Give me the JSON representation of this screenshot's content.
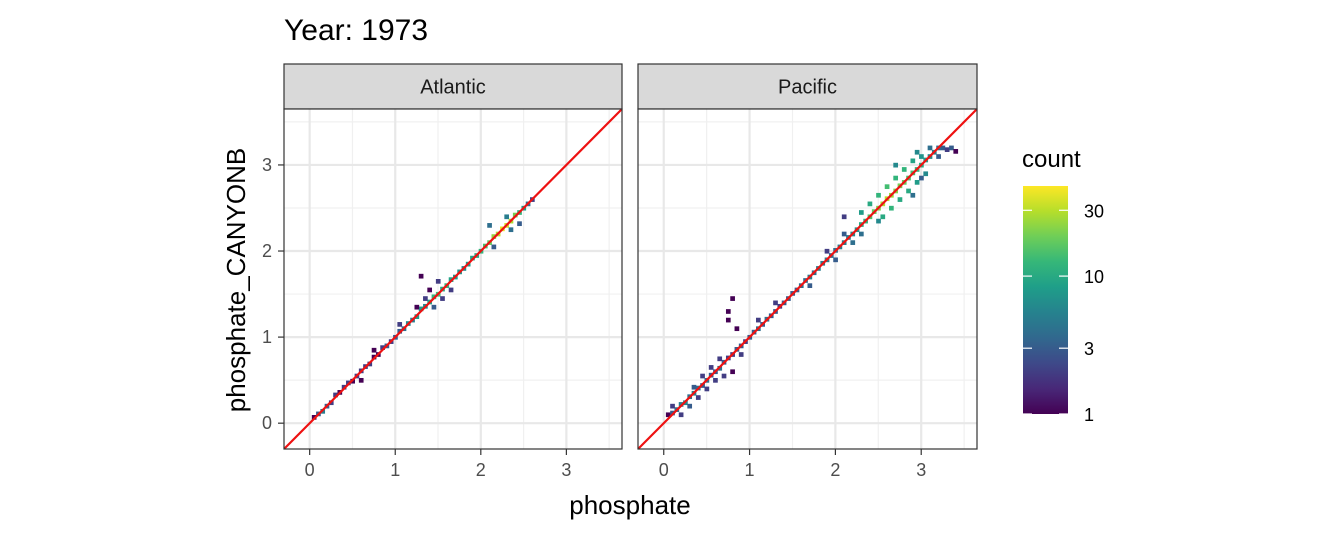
{
  "chart_data": {
    "type": "heatmap",
    "title": "Year: 1973",
    "xlabel": "phosphate",
    "ylabel": "phosphate_CANYONB",
    "xlim": [
      -0.3,
      3.65
    ],
    "ylim": [
      -0.3,
      3.65
    ],
    "x_ticks": [
      0,
      1,
      2,
      3
    ],
    "y_ticks": [
      0,
      1,
      2,
      3
    ],
    "grid": true,
    "reference_line": {
      "slope": 1,
      "intercept": 0,
      "color": "#ee1111"
    },
    "facets": [
      {
        "label": "Atlantic",
        "x_range": [
          0.0,
          2.6
        ],
        "bins": [
          [
            0.05,
            0.07,
            1
          ],
          [
            0.1,
            0.11,
            3
          ],
          [
            0.15,
            0.14,
            5
          ],
          [
            0.2,
            0.2,
            3
          ],
          [
            0.25,
            0.24,
            2
          ],
          [
            0.3,
            0.33,
            2
          ],
          [
            0.35,
            0.36,
            1
          ],
          [
            0.4,
            0.42,
            2
          ],
          [
            0.45,
            0.47,
            2
          ],
          [
            0.5,
            0.49,
            1
          ],
          [
            0.55,
            0.55,
            2
          ],
          [
            0.6,
            0.61,
            2
          ],
          [
            0.65,
            0.66,
            2
          ],
          [
            0.7,
            0.69,
            2
          ],
          [
            0.75,
            0.77,
            1
          ],
          [
            0.8,
            0.8,
            1
          ],
          [
            0.85,
            0.88,
            2
          ],
          [
            0.9,
            0.9,
            3
          ],
          [
            0.95,
            0.95,
            2
          ],
          [
            1.0,
            1.0,
            3
          ],
          [
            1.05,
            1.07,
            3
          ],
          [
            1.1,
            1.1,
            4
          ],
          [
            1.15,
            1.16,
            6
          ],
          [
            1.2,
            1.2,
            5
          ],
          [
            1.25,
            1.24,
            8
          ],
          [
            1.3,
            1.33,
            8
          ],
          [
            1.35,
            1.36,
            6
          ],
          [
            1.4,
            1.41,
            9
          ],
          [
            1.45,
            1.47,
            12
          ],
          [
            1.5,
            1.5,
            14
          ],
          [
            1.55,
            1.56,
            10
          ],
          [
            1.6,
            1.6,
            12
          ],
          [
            1.65,
            1.67,
            9
          ],
          [
            1.7,
            1.7,
            8
          ],
          [
            1.75,
            1.76,
            7
          ],
          [
            1.8,
            1.8,
            6
          ],
          [
            1.85,
            1.85,
            8
          ],
          [
            1.9,
            1.92,
            9
          ],
          [
            1.95,
            1.95,
            10
          ],
          [
            2.0,
            2.0,
            12
          ],
          [
            2.05,
            2.06,
            15
          ],
          [
            2.1,
            2.1,
            18
          ],
          [
            2.15,
            2.17,
            24
          ],
          [
            2.2,
            2.2,
            30
          ],
          [
            2.25,
            2.26,
            40
          ],
          [
            2.3,
            2.3,
            35
          ],
          [
            2.35,
            2.35,
            28
          ],
          [
            2.4,
            2.42,
            20
          ],
          [
            2.45,
            2.45,
            12
          ],
          [
            2.5,
            2.5,
            8
          ],
          [
            2.55,
            2.55,
            4
          ],
          [
            2.6,
            2.6,
            2
          ],
          [
            1.3,
            1.71,
            1
          ],
          [
            1.25,
            1.35,
            1
          ],
          [
            1.35,
            1.45,
            2
          ],
          [
            1.4,
            1.55,
            1
          ],
          [
            0.6,
            0.5,
            1
          ],
          [
            1.5,
            1.65,
            2
          ],
          [
            1.45,
            1.35,
            3
          ],
          [
            1.55,
            1.45,
            2
          ],
          [
            0.75,
            0.85,
            1
          ],
          [
            1.65,
            1.55,
            2
          ],
          [
            1.05,
            1.15,
            2
          ],
          [
            2.1,
            2.3,
            4
          ],
          [
            2.15,
            2.05,
            3
          ],
          [
            2.3,
            2.4,
            5
          ],
          [
            2.35,
            2.25,
            4
          ],
          [
            2.45,
            2.32,
            3
          ]
        ]
      },
      {
        "label": "Pacific",
        "x_range": [
          0.05,
          3.45
        ],
        "bins": [
          [
            0.05,
            0.1,
            1
          ],
          [
            0.1,
            0.12,
            3
          ],
          [
            0.15,
            0.16,
            4
          ],
          [
            0.2,
            0.22,
            5
          ],
          [
            0.25,
            0.24,
            6
          ],
          [
            0.3,
            0.31,
            4
          ],
          [
            0.35,
            0.35,
            5
          ],
          [
            0.4,
            0.41,
            4
          ],
          [
            0.45,
            0.44,
            3
          ],
          [
            0.5,
            0.5,
            4
          ],
          [
            0.55,
            0.56,
            3
          ],
          [
            0.6,
            0.6,
            3
          ],
          [
            0.65,
            0.64,
            4
          ],
          [
            0.7,
            0.71,
            3
          ],
          [
            0.75,
            0.76,
            2
          ],
          [
            0.8,
            0.8,
            2
          ],
          [
            0.85,
            0.86,
            3
          ],
          [
            0.9,
            0.9,
            3
          ],
          [
            0.95,
            0.95,
            2
          ],
          [
            1.0,
            1.0,
            3
          ],
          [
            1.05,
            1.06,
            3
          ],
          [
            1.1,
            1.1,
            4
          ],
          [
            1.15,
            1.15,
            3
          ],
          [
            1.2,
            1.21,
            4
          ],
          [
            1.25,
            1.25,
            3
          ],
          [
            1.3,
            1.3,
            3
          ],
          [
            1.35,
            1.36,
            2
          ],
          [
            1.4,
            1.4,
            3
          ],
          [
            1.45,
            1.45,
            3
          ],
          [
            1.5,
            1.51,
            3
          ],
          [
            1.55,
            1.55,
            3
          ],
          [
            1.6,
            1.6,
            4
          ],
          [
            1.65,
            1.66,
            4
          ],
          [
            1.7,
            1.7,
            5
          ],
          [
            1.75,
            1.75,
            4
          ],
          [
            1.8,
            1.8,
            5
          ],
          [
            1.85,
            1.86,
            5
          ],
          [
            1.9,
            1.9,
            5
          ],
          [
            1.95,
            1.95,
            4
          ],
          [
            2.0,
            2.01,
            4
          ],
          [
            2.05,
            2.05,
            5
          ],
          [
            2.1,
            2.1,
            5
          ],
          [
            2.15,
            2.16,
            5
          ],
          [
            2.2,
            2.2,
            6
          ],
          [
            2.25,
            2.25,
            7
          ],
          [
            2.3,
            2.31,
            10
          ],
          [
            2.35,
            2.35,
            12
          ],
          [
            2.4,
            2.4,
            15
          ],
          [
            2.45,
            2.46,
            18
          ],
          [
            2.5,
            2.5,
            22
          ],
          [
            2.55,
            2.55,
            28
          ],
          [
            2.6,
            2.61,
            30
          ],
          [
            2.65,
            2.65,
            25
          ],
          [
            2.7,
            2.7,
            22
          ],
          [
            2.75,
            2.76,
            20
          ],
          [
            2.8,
            2.8,
            18
          ],
          [
            2.85,
            2.85,
            15
          ],
          [
            2.9,
            2.91,
            14
          ],
          [
            2.95,
            2.95,
            12
          ],
          [
            3.0,
            3.0,
            10
          ],
          [
            3.05,
            3.06,
            8
          ],
          [
            3.1,
            3.1,
            6
          ],
          [
            3.15,
            3.15,
            5
          ],
          [
            3.2,
            3.2,
            4
          ],
          [
            3.25,
            3.2,
            3
          ],
          [
            3.3,
            3.18,
            2
          ],
          [
            3.35,
            3.2,
            3
          ],
          [
            3.4,
            3.16,
            1
          ],
          [
            0.1,
            0.2,
            2
          ],
          [
            0.2,
            0.1,
            2
          ],
          [
            0.3,
            0.2,
            3
          ],
          [
            0.35,
            0.42,
            3
          ],
          [
            0.4,
            0.3,
            2
          ],
          [
            0.45,
            0.55,
            2
          ],
          [
            0.5,
            0.4,
            2
          ],
          [
            0.55,
            0.65,
            2
          ],
          [
            0.6,
            0.5,
            2
          ],
          [
            0.65,
            0.75,
            2
          ],
          [
            0.7,
            0.55,
            2
          ],
          [
            0.8,
            0.6,
            1
          ],
          [
            0.8,
            1.45,
            1
          ],
          [
            0.75,
            1.3,
            1
          ],
          [
            0.85,
            1.1,
            1
          ],
          [
            0.75,
            1.2,
            1
          ],
          [
            0.9,
            0.8,
            2
          ],
          [
            1.1,
            1.2,
            2
          ],
          [
            1.3,
            1.4,
            2
          ],
          [
            1.7,
            1.6,
            3
          ],
          [
            1.9,
            2.0,
            2
          ],
          [
            2.0,
            1.9,
            3
          ],
          [
            2.1,
            2.2,
            3
          ],
          [
            2.2,
            2.1,
            4
          ],
          [
            2.3,
            2.45,
            8
          ],
          [
            2.4,
            2.55,
            10
          ],
          [
            2.5,
            2.65,
            12
          ],
          [
            2.55,
            2.4,
            10
          ],
          [
            2.6,
            2.75,
            14
          ],
          [
            2.65,
            2.5,
            12
          ],
          [
            2.7,
            2.85,
            12
          ],
          [
            2.75,
            2.6,
            10
          ],
          [
            2.8,
            2.95,
            12
          ],
          [
            2.85,
            2.7,
            10
          ],
          [
            2.9,
            3.05,
            9
          ],
          [
            2.95,
            2.8,
            8
          ],
          [
            3.0,
            3.1,
            7
          ],
          [
            3.05,
            2.9,
            6
          ],
          [
            2.1,
            2.4,
            2
          ],
          [
            2.3,
            2.2,
            4
          ],
          [
            2.5,
            2.35,
            6
          ],
          [
            2.7,
            3.0,
            6
          ],
          [
            2.9,
            2.65,
            4
          ],
          [
            2.95,
            3.15,
            6
          ],
          [
            3.1,
            3.2,
            4
          ],
          [
            3.0,
            2.85,
            3
          ],
          [
            3.2,
            3.1,
            3
          ]
        ]
      }
    ],
    "legend": {
      "title": "count",
      "placement": "right",
      "scale": "log10",
      "range": [
        1,
        45
      ],
      "breaks": [
        1,
        3,
        10,
        30
      ],
      "break_labels": [
        "1",
        "3",
        "10",
        "30"
      ],
      "colormap": "viridis",
      "colors": [
        "#440154",
        "#482878",
        "#3e4989",
        "#31688e",
        "#26828e",
        "#1f9e89",
        "#35b779",
        "#6ece58",
        "#b5de2b",
        "#fde725"
      ]
    }
  }
}
